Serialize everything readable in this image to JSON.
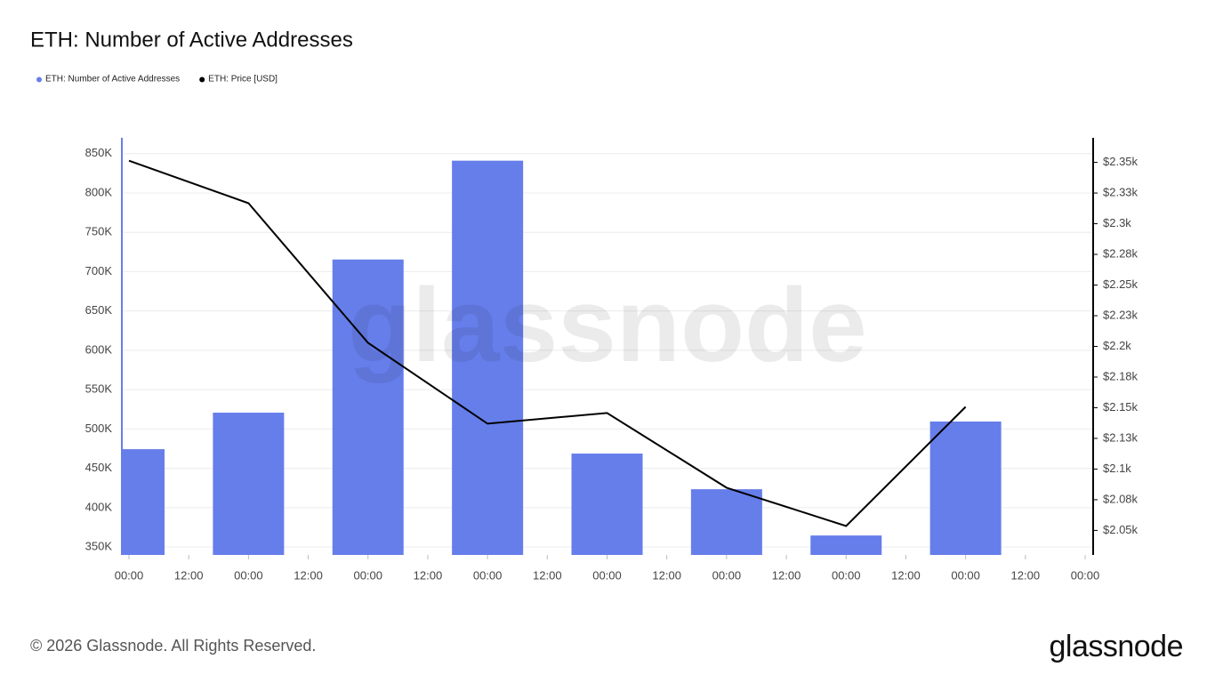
{
  "chart_data": {
    "type": "bar_line",
    "title": "ETH: Number of Active Addresses",
    "x": [
      0,
      24,
      48,
      72,
      96,
      120,
      144,
      168
    ],
    "xlim": [
      0,
      192
    ],
    "xticks": [
      {
        "value": 0,
        "label": "00:00"
      },
      {
        "value": 12,
        "label": "12:00"
      },
      {
        "value": 24,
        "label": "00:00"
      },
      {
        "value": 36,
        "label": "12:00"
      },
      {
        "value": 48,
        "label": "00:00"
      },
      {
        "value": 60,
        "label": "12:00"
      },
      {
        "value": 72,
        "label": "00:00"
      },
      {
        "value": 84,
        "label": "12:00"
      },
      {
        "value": 96,
        "label": "00:00"
      },
      {
        "value": 108,
        "label": "12:00"
      },
      {
        "value": 120,
        "label": "00:00"
      },
      {
        "value": 132,
        "label": "12:00"
      },
      {
        "value": 144,
        "label": "00:00"
      },
      {
        "value": 156,
        "label": "12:00"
      },
      {
        "value": 168,
        "label": "00:00"
      },
      {
        "value": 180,
        "label": "12:00"
      },
      {
        "value": 192,
        "label": "00:00"
      }
    ],
    "ylim": [
      340000,
      870000
    ],
    "yticks": [
      {
        "value": 350000,
        "label": "350K"
      },
      {
        "value": 400000,
        "label": "400K"
      },
      {
        "value": 450000,
        "label": "450K"
      },
      {
        "value": 500000,
        "label": "500K"
      },
      {
        "value": 550000,
        "label": "550K"
      },
      {
        "value": 600000,
        "label": "600K"
      },
      {
        "value": 650000,
        "label": "650K"
      },
      {
        "value": 700000,
        "label": "700K"
      },
      {
        "value": 750000,
        "label": "750K"
      },
      {
        "value": 800000,
        "label": "800K"
      },
      {
        "value": 850000,
        "label": "850K"
      }
    ],
    "y2lim": [
      2030,
      2370
    ],
    "y2ticks": [
      {
        "value": 2050,
        "label": "$2.05k"
      },
      {
        "value": 2075,
        "label": "$2.08k"
      },
      {
        "value": 2100,
        "label": "$2.1k"
      },
      {
        "value": 2125,
        "label": "$2.13k"
      },
      {
        "value": 2150,
        "label": "$2.15k"
      },
      {
        "value": 2175,
        "label": "$2.18k"
      },
      {
        "value": 2200,
        "label": "$2.2k"
      },
      {
        "value": 2225,
        "label": "$2.23k"
      },
      {
        "value": 2250,
        "label": "$2.25k"
      },
      {
        "value": 2275,
        "label": "$2.28k"
      },
      {
        "value": 2300,
        "label": "$2.3k"
      },
      {
        "value": 2325,
        "label": "$2.33k"
      },
      {
        "value": 2350,
        "label": "$2.35k"
      }
    ],
    "grid": true,
    "series": [
      {
        "name": "ETH: Number of Active Addresses",
        "type": "bar",
        "color": "#667eea",
        "axis": "y",
        "values": [
          474400,
          520800,
          715400,
          841000,
          468800,
          423500,
          364700,
          509500
        ]
      },
      {
        "name": "ETH: Price [USD]",
        "type": "line",
        "color": "#000000",
        "axis": "y2",
        "values": [
          2351.4,
          2316.7,
          2202.9,
          2137,
          2145.7,
          2084.8,
          2053.6,
          2150.7
        ]
      }
    ],
    "watermark": "glassnode",
    "footer": "© 2026 Glassnode. All Rights Reserved.",
    "logo": "glassnode"
  }
}
